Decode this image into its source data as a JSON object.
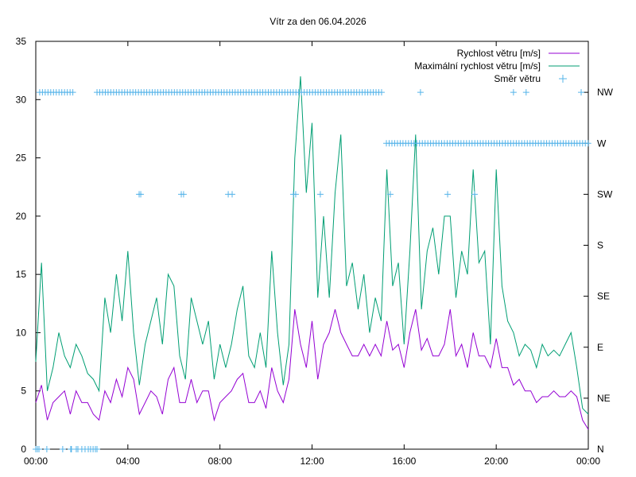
{
  "chart_data": {
    "type": "line",
    "title": "Vítr za den 06.04.2026",
    "xlabel": "",
    "ylabel": "",
    "xlim_hours": [
      0,
      24
    ],
    "ylim": [
      0,
      35
    ],
    "y2lim_degrees": [
      0,
      360
    ],
    "x_tick_labels": [
      "00:00",
      "04:00",
      "08:00",
      "12:00",
      "16:00",
      "20:00",
      "00:00"
    ],
    "x_tick_hours": [
      0,
      4,
      8,
      12,
      16,
      20,
      24
    ],
    "y_ticks": [
      0,
      5,
      10,
      15,
      20,
      25,
      30,
      35
    ],
    "y2_ticks": [
      {
        "label": "N",
        "deg": 0
      },
      {
        "label": "NE",
        "deg": 45
      },
      {
        "label": "E",
        "deg": 90
      },
      {
        "label": "SE",
        "deg": 135
      },
      {
        "label": "S",
        "deg": 180
      },
      {
        "label": "SW",
        "deg": 225
      },
      {
        "label": "W",
        "deg": 270
      },
      {
        "label": "NW",
        "deg": 315
      }
    ],
    "grid": false,
    "legend_position": "top-right",
    "series": [
      {
        "name": "Rychlost větru [m/s]",
        "color": "#9400d3",
        "step_minutes": 15,
        "values": [
          4,
          5.5,
          2.5,
          4,
          4.5,
          5,
          3,
          5,
          4,
          4,
          3,
          2.5,
          5,
          4,
          6,
          4.5,
          7,
          6,
          3,
          4,
          5,
          4.5,
          3,
          6,
          7,
          4,
          4,
          6,
          4,
          5,
          5,
          2.5,
          4,
          4.5,
          5,
          6,
          6.5,
          4,
          4,
          5,
          3.5,
          7,
          5,
          4,
          6,
          12,
          9,
          7,
          11,
          6,
          9,
          10,
          12,
          10,
          9,
          8,
          8,
          9,
          8,
          9,
          8,
          11,
          8.5,
          9,
          7,
          10,
          12,
          8.5,
          9.5,
          8,
          8,
          9,
          12,
          8,
          9,
          7,
          10,
          8,
          8,
          7,
          9.5,
          7,
          7,
          5.5,
          6,
          5,
          5,
          4,
          4.5,
          4.5,
          5,
          4.5,
          4.5,
          5,
          4.5,
          2.5,
          1.7
        ]
      },
      {
        "name": "Maximální rychlost větru [m/s]",
        "color": "#009e73",
        "step_minutes": 15,
        "values": [
          7.5,
          16,
          5,
          7,
          10,
          8,
          7,
          9,
          8,
          6.5,
          6,
          5,
          13,
          10,
          15,
          11,
          17,
          10,
          5.5,
          9,
          11,
          13,
          9,
          15,
          14,
          8,
          6,
          13,
          11,
          9,
          11,
          6,
          9,
          7,
          9,
          12,
          14,
          8,
          7,
          10,
          7,
          17,
          10,
          5.5,
          9,
          25,
          32,
          22,
          28,
          13,
          20,
          13,
          22,
          27,
          14,
          16,
          12,
          15,
          10,
          13,
          11,
          24,
          14,
          16,
          9,
          17,
          27,
          12,
          17,
          19,
          15,
          20,
          20,
          13,
          17,
          15,
          24,
          16,
          17,
          9,
          24,
          14,
          11,
          10,
          8,
          9,
          8.5,
          7,
          9,
          8,
          8.5,
          8,
          9,
          10,
          7,
          3.5,
          3
        ]
      },
      {
        "name": "Směr větru",
        "color": "#56b4e9",
        "axis": "y2",
        "ranges": [
          {
            "deg": 315,
            "from_hour": 0.17,
            "to_hour": 1.66,
            "step_hour": 0.12
          },
          {
            "deg": 315,
            "from_hour": 2.66,
            "to_hour": 15.12,
            "step_hour": 0.12
          },
          {
            "deg": 270,
            "from_hour": 15.23,
            "to_hour": 24,
            "step_hour": 0.12
          }
        ],
        "points": [
          {
            "hour": 16.71,
            "deg": 315
          },
          {
            "hour": 20.75,
            "deg": 315
          },
          {
            "hour": 21.3,
            "deg": 315
          },
          {
            "hour": 23.69,
            "deg": 315
          },
          {
            "hour": 4.49,
            "deg": 225
          },
          {
            "hour": 4.56,
            "deg": 225
          },
          {
            "hour": 6.32,
            "deg": 225
          },
          {
            "hour": 6.42,
            "deg": 225
          },
          {
            "hour": 8.36,
            "deg": 225
          },
          {
            "hour": 8.53,
            "deg": 225
          },
          {
            "hour": 11.19,
            "deg": 225
          },
          {
            "hour": 11.29,
            "deg": 225
          },
          {
            "hour": 12.36,
            "deg": 225
          },
          {
            "hour": 15.4,
            "deg": 225
          },
          {
            "hour": 17.89,
            "deg": 225
          },
          {
            "hour": 19.06,
            "deg": 225
          },
          {
            "hour": 0,
            "deg": 0
          },
          {
            "hour": 0.07,
            "deg": 0
          },
          {
            "hour": 0.14,
            "deg": 0
          },
          {
            "hour": 0.48,
            "deg": 0
          },
          {
            "hour": 1.17,
            "deg": 0
          },
          {
            "hour": 1.52,
            "deg": 0
          },
          {
            "hour": 1.55,
            "deg": 0
          },
          {
            "hour": 1.76,
            "deg": 0
          },
          {
            "hour": 1.83,
            "deg": 0
          },
          {
            "hour": 2.0,
            "deg": 0
          },
          {
            "hour": 2.14,
            "deg": 0
          },
          {
            "hour": 2.28,
            "deg": 0
          },
          {
            "hour": 2.38,
            "deg": 0
          },
          {
            "hour": 2.49,
            "deg": 0
          },
          {
            "hour": 2.59,
            "deg": 0
          },
          {
            "hour": 2.66,
            "deg": 0
          }
        ]
      }
    ]
  }
}
